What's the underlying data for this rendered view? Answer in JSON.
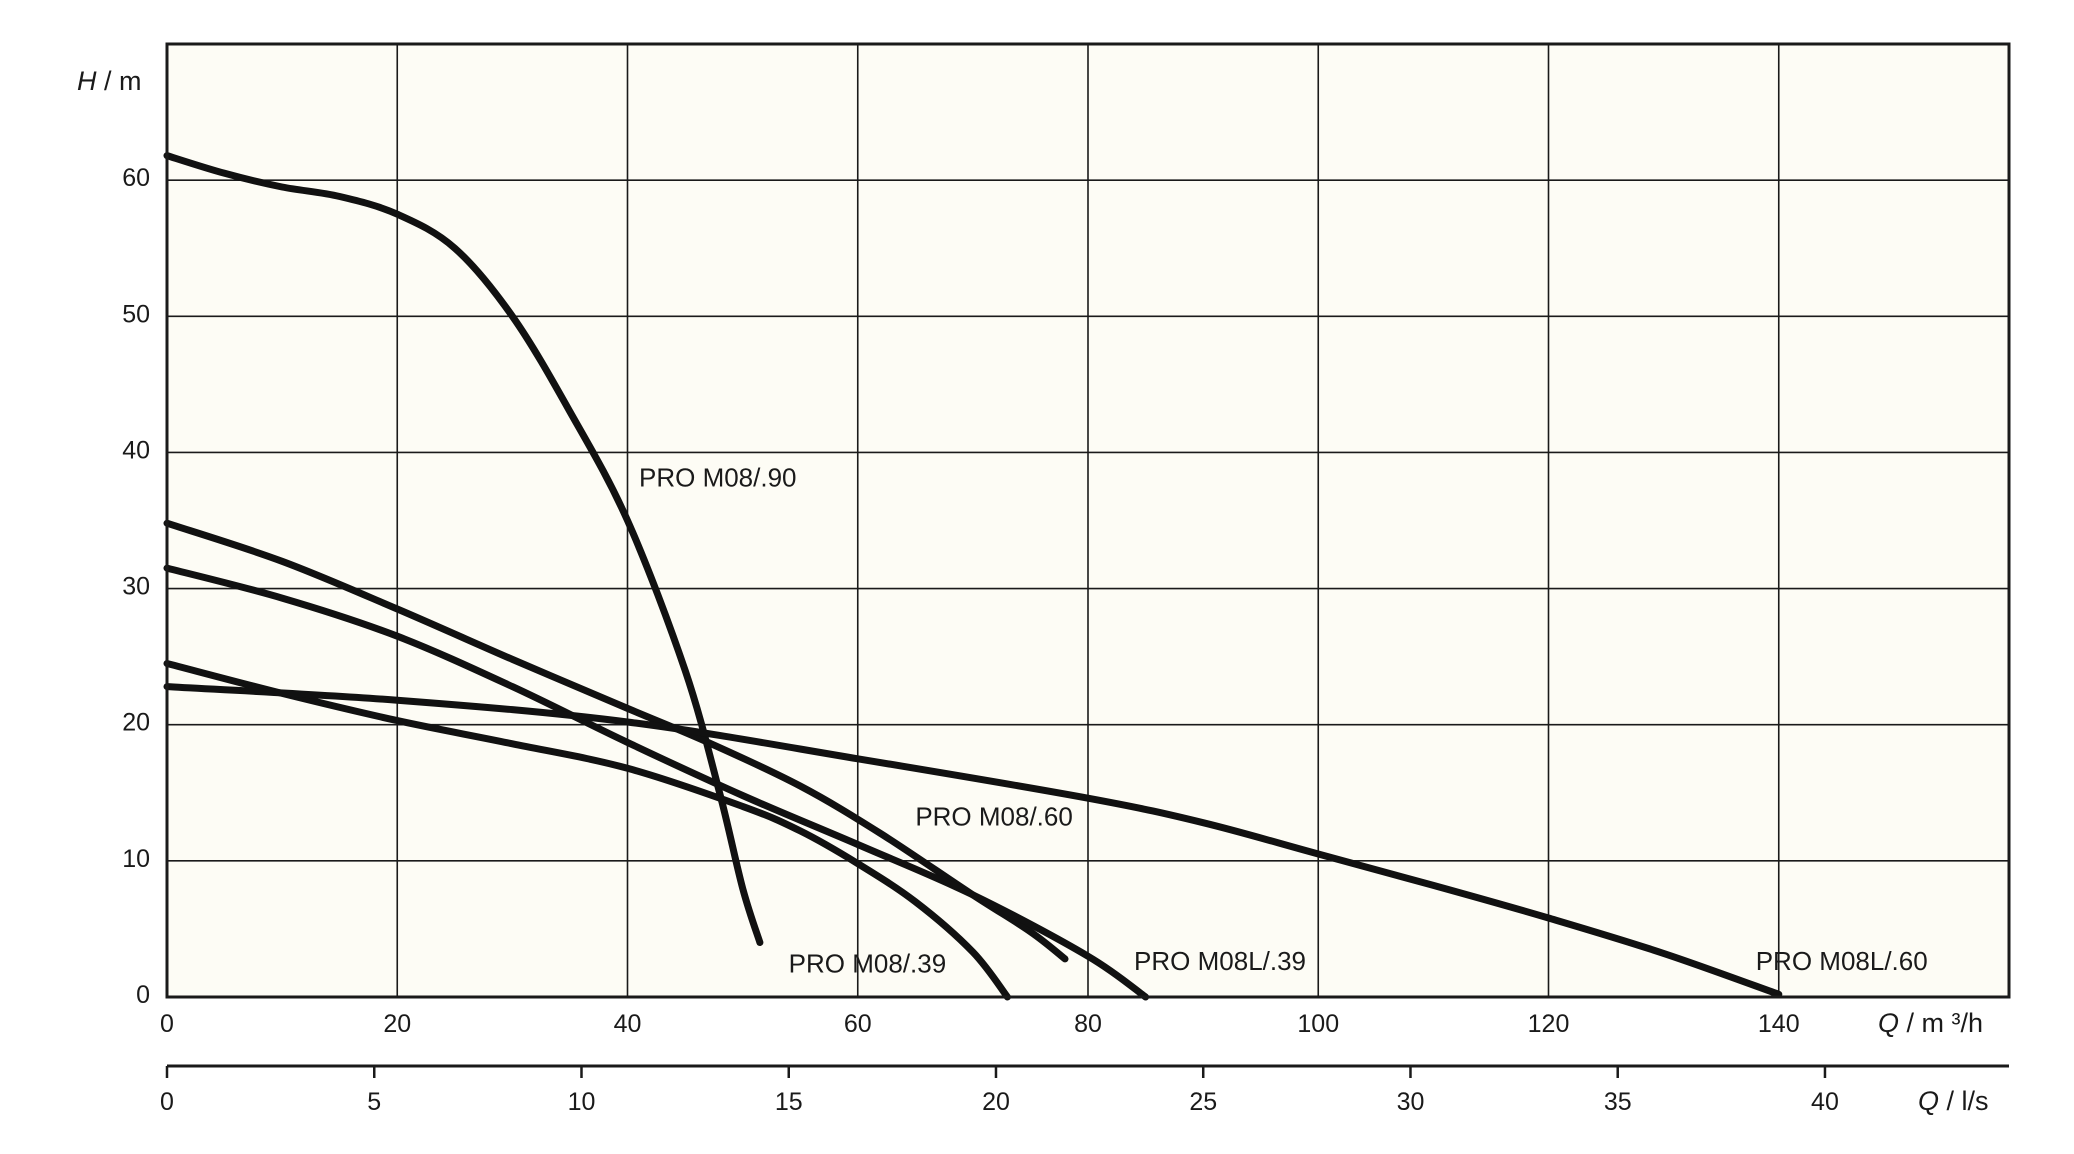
{
  "colors": {
    "plot_background": "#fdfcf5",
    "grid": "#1a1a1a",
    "curve": "#111111"
  },
  "axis_titles": {
    "y_symbol": "H",
    "y_unit": " / m",
    "x_symbol": "Q",
    "x_unit": " / m ³/h",
    "x2_symbol": "Q",
    "x2_unit": " / l/s"
  },
  "chart_data": {
    "type": "line",
    "title": "",
    "xlabel": "Q / m ³/h",
    "ylabel": "H / m",
    "xlim": [
      0,
      160
    ],
    "ylim": [
      0,
      70
    ],
    "xticks": [
      0,
      20,
      40,
      60,
      80,
      100,
      120,
      140
    ],
    "yticks": [
      0,
      10,
      20,
      30,
      40,
      50,
      60
    ],
    "grid": true,
    "secondary_x_axis": {
      "label": "Q / l/s",
      "lim": [
        0,
        44.44
      ],
      "ticks": [
        0,
        5,
        10,
        15,
        20,
        25,
        30,
        35,
        40
      ]
    },
    "series": [
      {
        "name": "PRO M08/.90",
        "points": [
          [
            0,
            61.8
          ],
          [
            5,
            60.5
          ],
          [
            10,
            59.5
          ],
          [
            15,
            58.8
          ],
          [
            20,
            57.5
          ],
          [
            25,
            55
          ],
          [
            30,
            50
          ],
          [
            35,
            43
          ],
          [
            40,
            35
          ],
          [
            45,
            24
          ],
          [
            48,
            15
          ],
          [
            50,
            8
          ],
          [
            51.5,
            4
          ]
        ]
      },
      {
        "name": "PRO M08/.60",
        "points": [
          [
            0,
            34.8
          ],
          [
            10,
            32
          ],
          [
            20,
            28.5
          ],
          [
            30,
            24.8
          ],
          [
            40,
            21.2
          ],
          [
            47,
            18.7
          ],
          [
            55,
            15.5
          ],
          [
            62,
            12
          ],
          [
            70,
            7.5
          ],
          [
            75,
            4.8
          ],
          [
            78,
            2.8
          ]
        ]
      },
      {
        "name": "PRO M08/.39",
        "points": [
          [
            0,
            24.5
          ],
          [
            10,
            22.3
          ],
          [
            20,
            20.3
          ],
          [
            30,
            18.6
          ],
          [
            40,
            16.8
          ],
          [
            50,
            14
          ],
          [
            55,
            12.2
          ],
          [
            60,
            9.8
          ],
          [
            65,
            7
          ],
          [
            70,
            3.3
          ],
          [
            73,
            0
          ]
        ]
      },
      {
        "name": "PRO M08L/.39",
        "points": [
          [
            0,
            31.5
          ],
          [
            10,
            29.3
          ],
          [
            20,
            26.5
          ],
          [
            30,
            22.8
          ],
          [
            40,
            18.7
          ],
          [
            50,
            14.8
          ],
          [
            60,
            11.2
          ],
          [
            70,
            7.5
          ],
          [
            80,
            3
          ],
          [
            85,
            0
          ]
        ]
      },
      {
        "name": "PRO M08L/.60",
        "points": [
          [
            0,
            22.8
          ],
          [
            20,
            21.8
          ],
          [
            40,
            20.2
          ],
          [
            60,
            17.5
          ],
          [
            80,
            14.6
          ],
          [
            90,
            12.8
          ],
          [
            100,
            10.5
          ],
          [
            110,
            8.2
          ],
          [
            120,
            5.8
          ],
          [
            130,
            3.2
          ],
          [
            140,
            0.2
          ]
        ]
      }
    ],
    "annotations": [
      {
        "text": "PRO M08/.90",
        "x": 41,
        "y": 37.5
      },
      {
        "text": "PRO M08/.60",
        "x": 65,
        "y": 12.6
      },
      {
        "text": "PRO M08/.39",
        "x": 54,
        "y": 1.8
      },
      {
        "text": "PRO M08L/.39",
        "x": 84,
        "y": 2
      },
      {
        "text": "PRO M08L/.60",
        "x": 138,
        "y": 2
      }
    ]
  }
}
